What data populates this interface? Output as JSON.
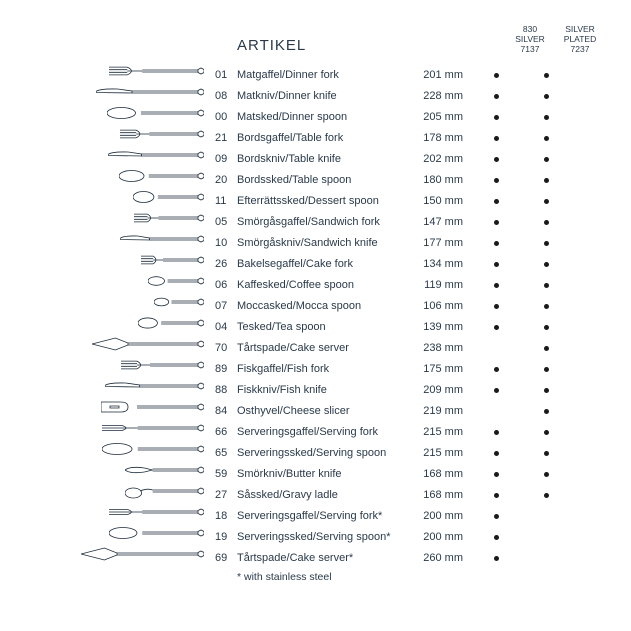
{
  "header": {
    "title": "ARTIKEL",
    "columns": [
      {
        "line1": "830",
        "line2": "SILVER",
        "line3": "7137"
      },
      {
        "line1": "SILVER",
        "line2": "PLATED",
        "line3": "7237"
      }
    ]
  },
  "rows": [
    {
      "code": "01",
      "name": "Matgaffel/Dinner fork",
      "size": "201 mm",
      "c1": true,
      "c2": true
    },
    {
      "code": "08",
      "name": "Matkniv/Dinner knife",
      "size": "228 mm",
      "c1": true,
      "c2": true
    },
    {
      "code": "00",
      "name": "Matsked/Dinner spoon",
      "size": "205 mm",
      "c1": true,
      "c2": true
    },
    {
      "code": "21",
      "name": "Bordsgaffel/Table fork",
      "size": "178 mm",
      "c1": true,
      "c2": true
    },
    {
      "code": "09",
      "name": "Bordskniv/Table knife",
      "size": "202 mm",
      "c1": true,
      "c2": true
    },
    {
      "code": "20",
      "name": "Bordssked/Table spoon",
      "size": "180 mm",
      "c1": true,
      "c2": true
    },
    {
      "code": "11",
      "name": "Efterrättssked/Dessert spoon",
      "size": "150 mm",
      "c1": true,
      "c2": true
    },
    {
      "code": "05",
      "name": "Smörgåsgaffel/Sandwich fork",
      "size": "147 mm",
      "c1": true,
      "c2": true
    },
    {
      "code": "10",
      "name": "Smörgåskniv/Sandwich knife",
      "size": "177 mm",
      "c1": true,
      "c2": true
    },
    {
      "code": "26",
      "name": "Bakelsegaffel/Cake fork",
      "size": "134 mm",
      "c1": true,
      "c2": true
    },
    {
      "code": "06",
      "name": "Kaffesked/Coffee spoon",
      "size": "119 mm",
      "c1": true,
      "c2": true
    },
    {
      "code": "07",
      "name": "Moccasked/Mocca spoon",
      "size": "106 mm",
      "c1": true,
      "c2": true
    },
    {
      "code": "04",
      "name": "Tesked/Tea spoon",
      "size": "139 mm",
      "c1": true,
      "c2": true
    },
    {
      "code": "70",
      "name": "Tårtspade/Cake server",
      "size": "238 mm",
      "c1": false,
      "c2": true
    },
    {
      "code": "89",
      "name": "Fiskgaffel/Fish fork",
      "size": "175 mm",
      "c1": true,
      "c2": true
    },
    {
      "code": "88",
      "name": "Fiskkniv/Fish knife",
      "size": "209 mm",
      "c1": true,
      "c2": true
    },
    {
      "code": "84",
      "name": "Osthyvel/Cheese slicer",
      "size": "219 mm",
      "c1": false,
      "c2": true
    },
    {
      "code": "66",
      "name": "Serveringsgaffel/Serving fork",
      "size": "215 mm",
      "c1": true,
      "c2": true
    },
    {
      "code": "65",
      "name": "Serveringssked/Serving spoon",
      "size": "215 mm",
      "c1": true,
      "c2": true
    },
    {
      "code": "59",
      "name": "Smörkniv/Butter knife",
      "size": "168 mm",
      "c1": true,
      "c2": true
    },
    {
      "code": "27",
      "name": "Såssked/Gravy ladle",
      "size": "168 mm",
      "c1": true,
      "c2": true
    },
    {
      "code": "18",
      "name": "Serveringsgaffel/Serving fork*",
      "size": "200 mm",
      "c1": true,
      "c2": false
    },
    {
      "code": "19",
      "name": "Serveringssked/Serving spoon*",
      "size": "200 mm",
      "c1": true,
      "c2": false
    },
    {
      "code": "69",
      "name": "Tårtspade/Cake server*",
      "size": "260 mm",
      "c1": true,
      "c2": false
    }
  ],
  "footnote": "* with stainless steel",
  "illustrations": [
    {
      "type": "fork",
      "len": 95
    },
    {
      "type": "knife",
      "len": 108
    },
    {
      "type": "spoon",
      "len": 97
    },
    {
      "type": "fork",
      "len": 84
    },
    {
      "type": "knife",
      "len": 96
    },
    {
      "type": "spoon",
      "len": 85
    },
    {
      "type": "spoon",
      "len": 71
    },
    {
      "type": "fork",
      "len": 70
    },
    {
      "type": "knife",
      "len": 84
    },
    {
      "type": "fork",
      "len": 63
    },
    {
      "type": "spoon",
      "len": 56
    },
    {
      "type": "spoon",
      "len": 50
    },
    {
      "type": "spoon",
      "len": 66
    },
    {
      "type": "server",
      "len": 112
    },
    {
      "type": "fishfork",
      "len": 83
    },
    {
      "type": "fishknife",
      "len": 99
    },
    {
      "type": "cheese",
      "len": 103
    },
    {
      "type": "servingfork",
      "len": 102
    },
    {
      "type": "servingspoon",
      "len": 102
    },
    {
      "type": "butter",
      "len": 79
    },
    {
      "type": "ladle",
      "len": 79
    },
    {
      "type": "servingfork",
      "len": 95
    },
    {
      "type": "servingspoon",
      "len": 95
    },
    {
      "type": "server",
      "len": 123
    }
  ],
  "colors": {
    "text": "#2a3a4a",
    "stroke": "#1a2a3a",
    "dot": "#1a1a1a",
    "background": "#ffffff"
  }
}
